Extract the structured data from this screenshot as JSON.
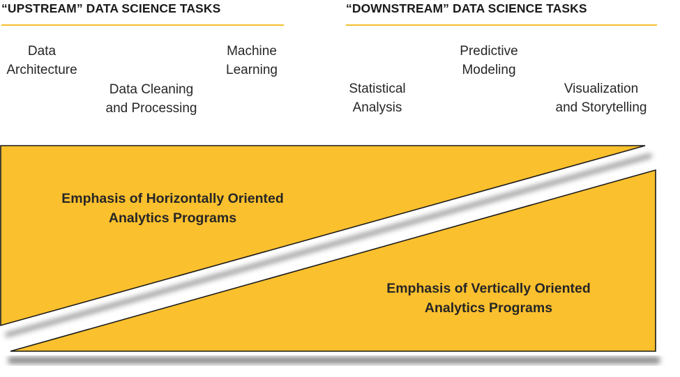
{
  "upstream": {
    "heading": "“UPSTREAM” DATA SCIENCE TASKS",
    "tasks": [
      {
        "lines": [
          "Data",
          "Architecture"
        ]
      },
      {
        "lines": [
          "Data Cleaning",
          "and Processing"
        ]
      },
      {
        "lines": [
          "Machine",
          "Learning"
        ]
      }
    ]
  },
  "downstream": {
    "heading": "“DOWNSTREAM” DATA SCIENCE TASKS",
    "tasks": [
      {
        "lines": [
          "Statistical",
          "Analysis"
        ]
      },
      {
        "lines": [
          "Predictive",
          "Modeling"
        ]
      },
      {
        "lines": [
          "Visualization",
          "and Storytelling"
        ]
      }
    ]
  },
  "horizontal": {
    "lines": [
      "Emphasis of Horizontally Oriented",
      "Analytics Programs"
    ]
  },
  "vertical": {
    "lines": [
      "Emphasis of Vertically Oriented",
      "Analytics Programs"
    ]
  },
  "colors": {
    "accent": "#fbc02d",
    "outline": "#1a1a1a",
    "shadow": "#7a7a7a"
  }
}
